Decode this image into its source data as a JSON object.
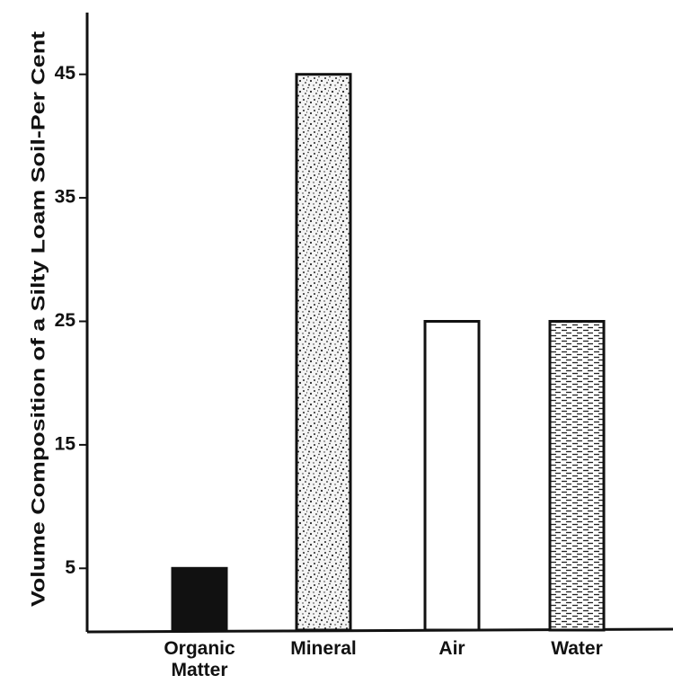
{
  "chart_data": {
    "type": "bar",
    "y_label": "Volume Composition of a Silty Loam Soil-Per Cent",
    "categories": [
      "Organic Matter",
      "Mineral",
      "Air",
      "Water"
    ],
    "values": [
      5,
      45,
      25,
      25
    ],
    "fills": [
      "solid",
      "stipple",
      "blank",
      "dashes"
    ],
    "color": "#111111",
    "ylim": [
      0,
      50
    ],
    "yticks": [
      5,
      15,
      25,
      35,
      45
    ],
    "grid": false
  }
}
